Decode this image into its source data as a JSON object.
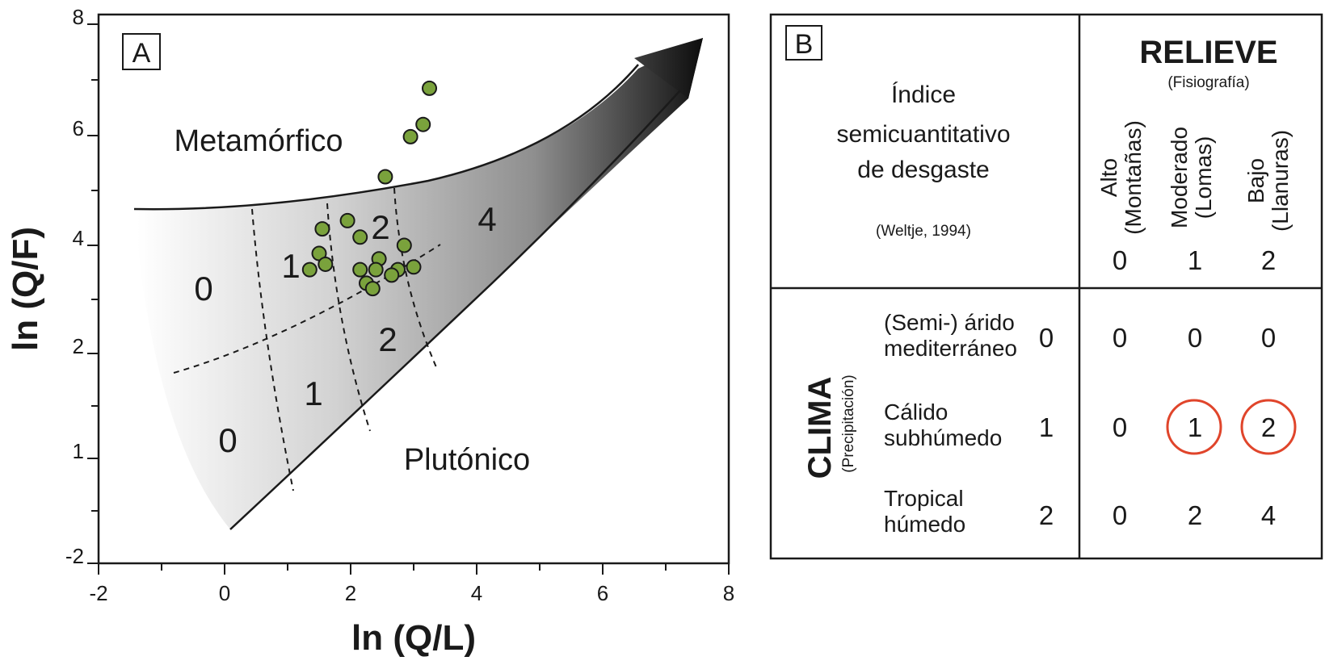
{
  "chart_data": [
    {
      "type": "scatter",
      "panel": "A",
      "xlabel": "ln (Q/L)",
      "ylabel": "ln (Q/F)",
      "xlim": [
        -2,
        8
      ],
      "ylim": [
        -2,
        8
      ],
      "x_ticks": [
        "-2",
        "0",
        "2",
        "4",
        "6",
        "8"
      ],
      "y_ticks": [
        "-2",
        "1",
        "2",
        "4",
        "6",
        "8"
      ],
      "region_labels": {
        "metamorphic": "Metamórfico",
        "plutonic": "Plutónico"
      },
      "zone_labels": [
        "0",
        "1",
        "2",
        "0",
        "1",
        "2",
        "4"
      ],
      "points": [
        [
          3.25,
          6.85
        ],
        [
          3.15,
          6.2
        ],
        [
          2.95,
          5.98
        ],
        [
          2.55,
          5.25
        ],
        [
          1.55,
          4.3
        ],
        [
          1.95,
          4.45
        ],
        [
          2.15,
          4.15
        ],
        [
          2.85,
          4.0
        ],
        [
          1.5,
          3.85
        ],
        [
          1.6,
          3.65
        ],
        [
          1.35,
          3.55
        ],
        [
          2.45,
          3.75
        ],
        [
          2.15,
          3.55
        ],
        [
          2.4,
          3.55
        ],
        [
          2.75,
          3.55
        ],
        [
          2.25,
          3.3
        ],
        [
          2.65,
          3.45
        ],
        [
          3.0,
          3.6
        ],
        [
          2.35,
          3.2
        ]
      ],
      "point_color": "#7aa23c"
    },
    {
      "type": "table",
      "panel": "B",
      "title_lines": [
        "Índice",
        "semicuantitativo",
        "de desgaste"
      ],
      "citation": "(Weltje, 1994)",
      "relief_title": "RELIEVE",
      "relief_subtitle": "(Fisiografía)",
      "relief_columns": [
        {
          "line1": "Alto",
          "line2": "(Montañas)",
          "value": "0"
        },
        {
          "line1": "Moderado",
          "line2": "(Lomas)",
          "value": "1"
        },
        {
          "line1": "Bajo",
          "line2": "(Llanuras)",
          "value": "2"
        }
      ],
      "climate_title": "CLIMA",
      "climate_subtitle": "(Precipitación)",
      "climate_rows": [
        {
          "line1": "(Semi-) árido",
          "line2": "mediterráneo",
          "value": "0",
          "cells": [
            "0",
            "0",
            "0"
          ]
        },
        {
          "line1": "Cálido",
          "line2": "subhúmedo",
          "value": "1",
          "cells": [
            "0",
            "1",
            "2"
          ]
        },
        {
          "line1": "Tropical",
          "line2": "húmedo",
          "value": "2",
          "cells": [
            "0",
            "2",
            "4"
          ]
        }
      ],
      "highlighted_cells": [
        [
          1,
          1
        ],
        [
          1,
          2
        ]
      ],
      "highlight_color": "#e0452b"
    }
  ]
}
